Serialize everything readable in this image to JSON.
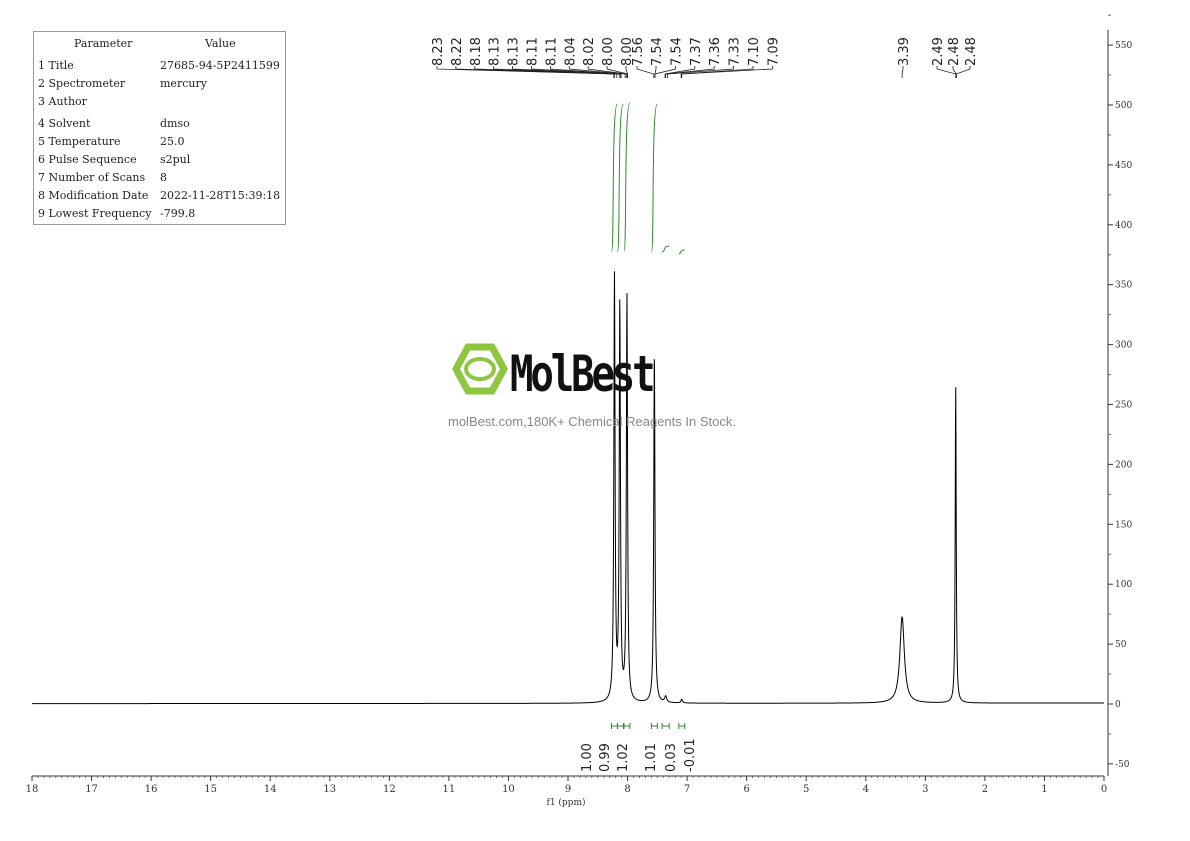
{
  "parameters": {
    "header": [
      "Parameter",
      "Value"
    ],
    "rows": [
      [
        "1 Title",
        "27685-94-5P2411599"
      ],
      [
        "2 Spectrometer",
        "mercury"
      ],
      [
        "3 Author",
        ""
      ],
      [
        "4 Solvent",
        "dmso"
      ],
      [
        "5 Temperature",
        "25.0"
      ],
      [
        "6 Pulse Sequence",
        "s2pul"
      ],
      [
        "7 Number of Scans",
        "8"
      ],
      [
        "8 Modification Date",
        "2022-11-28T15:39:18"
      ],
      [
        "9 Lowest Frequency",
        "-799.8"
      ]
    ]
  },
  "watermark": {
    "brand": "MolBest",
    "tagline": "molBest.com,180K+ Chemical Reagents In Stock.",
    "color": "#8dc63f"
  },
  "chart_data": {
    "type": "line",
    "xlabel": "f1 (ppm)",
    "ylabel": "",
    "xlim": [
      18,
      0
    ],
    "ylim": [
      -60,
      560
    ],
    "x_ticks": [
      18,
      17,
      16,
      15,
      14,
      13,
      12,
      11,
      10,
      9,
      8,
      7,
      6,
      5,
      4,
      3,
      2,
      1,
      0
    ],
    "y_ticks": [
      -50,
      0,
      50,
      100,
      150,
      200,
      250,
      300,
      350,
      400,
      450,
      500,
      550
    ],
    "line_color": "#000000",
    "integral_color": "#2e8b2e",
    "peaks": [
      {
        "ppm": 8.22,
        "height": 355,
        "width": 0.012
      },
      {
        "ppm": 8.13,
        "height": 330,
        "width": 0.012
      },
      {
        "ppm": 8.01,
        "height": 339,
        "width": 0.012
      },
      {
        "ppm": 7.55,
        "height": 293,
        "width": 0.012
      },
      {
        "ppm": 7.36,
        "height": 5,
        "width": 0.02
      },
      {
        "ppm": 7.09,
        "height": 3,
        "width": 0.015
      },
      {
        "ppm": 3.39,
        "height": 72,
        "width": 0.045
      },
      {
        "ppm": 2.49,
        "height": 265,
        "width": 0.01
      }
    ],
    "peak_labels": [
      "8.23",
      "8.22",
      "8.18",
      "8.13",
      "8.13",
      "8.11",
      "8.11",
      "8.04",
      "8.02",
      "8.00",
      "8.00",
      "7.56",
      "7.54",
      "7.54",
      "7.37",
      "7.36",
      "7.33",
      "7.10",
      "7.09",
      "3.39",
      "2.49",
      "2.48",
      "2.48"
    ],
    "integrals": [
      {
        "range": [
          8.27,
          8.17
        ],
        "value": "1.00"
      },
      {
        "range": [
          8.17,
          8.07
        ],
        "value": "0.99"
      },
      {
        "range": [
          8.06,
          7.96
        ],
        "value": "1.02"
      },
      {
        "range": [
          7.6,
          7.5
        ],
        "value": "1.01"
      },
      {
        "range": [
          7.42,
          7.3
        ],
        "value": "0.03"
      },
      {
        "range": [
          7.14,
          7.04
        ],
        "value": "-0.01"
      }
    ]
  }
}
